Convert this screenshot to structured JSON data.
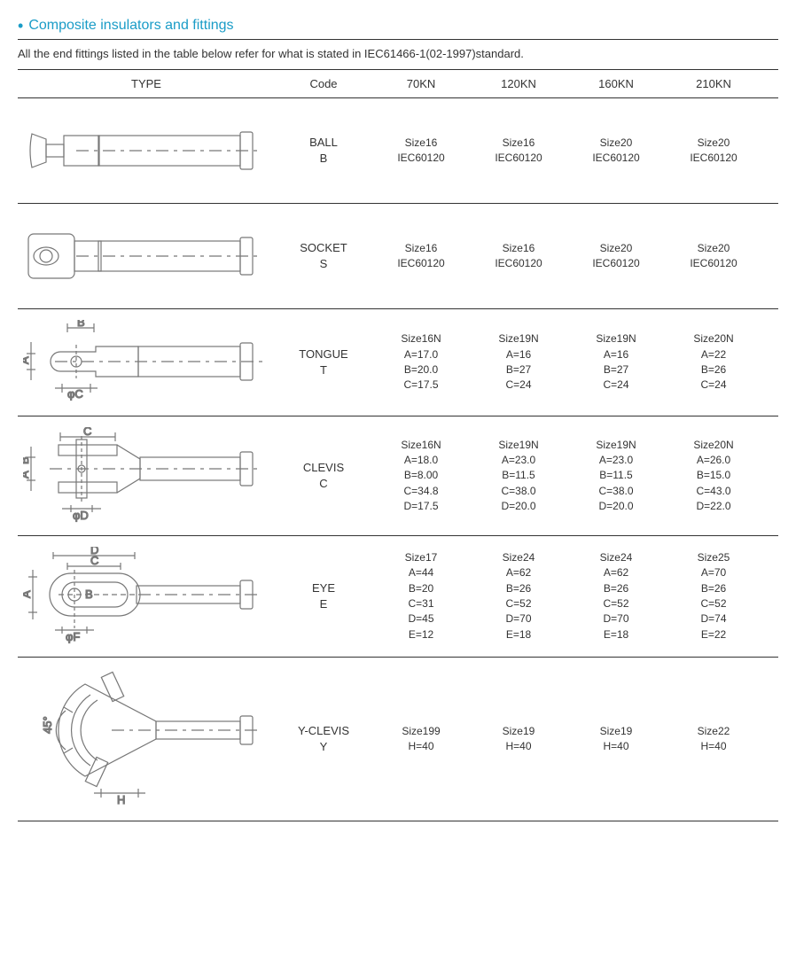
{
  "page_title": "Composite insulators and fittings",
  "subtitle": "All the end  fittings listed in the table below refer for what is stated in IEC61466-1(02-1997)standard.",
  "accent_color": "#1a9cc7",
  "rule_color": "#333333",
  "diagram_stroke": "#777777",
  "columns": {
    "type": "TYPE",
    "code": "Code",
    "kn": [
      "70KN",
      "120KN",
      "160KN",
      "210KN"
    ]
  },
  "rows": [
    {
      "diagram": "ball",
      "code_name": "BALL",
      "code_letter": "B",
      "cells": [
        [
          "Size16",
          "IEC60120"
        ],
        [
          "Size16",
          "IEC60120"
        ],
        [
          "Size20",
          "IEC60120"
        ],
        [
          "Size20",
          "IEC60120"
        ]
      ]
    },
    {
      "diagram": "socket",
      "code_name": "SOCKET",
      "code_letter": "S",
      "cells": [
        [
          "Size16",
          "IEC60120"
        ],
        [
          "Size16",
          "IEC60120"
        ],
        [
          "Size20",
          "IEC60120"
        ],
        [
          "Size20",
          "IEC60120"
        ]
      ]
    },
    {
      "diagram": "tongue",
      "code_name": "TONGUE",
      "code_letter": "T",
      "cells": [
        [
          "Size16N",
          "A=17.0",
          "B=20.0",
          "C=17.5"
        ],
        [
          "Size19N",
          "A=16",
          "B=27",
          "C=24"
        ],
        [
          "Size19N",
          "A=16",
          "B=27",
          "C=24"
        ],
        [
          "Size20N",
          "A=22",
          "B=26",
          "C=24"
        ]
      ]
    },
    {
      "diagram": "clevis",
      "code_name": "CLEVIS",
      "code_letter": "C",
      "cells": [
        [
          "Size16N",
          "A=18.0",
          "B=8.00",
          "C=34.8",
          "D=17.5"
        ],
        [
          "Size19N",
          "A=23.0",
          "B=11.5",
          "C=38.0",
          "D=20.0"
        ],
        [
          "Size19N",
          "A=23.0",
          "B=11.5",
          "C=38.0",
          "D=20.0"
        ],
        [
          "Size20N",
          "A=26.0",
          "B=15.0",
          "C=43.0",
          "D=22.0"
        ]
      ]
    },
    {
      "diagram": "eye",
      "code_name": "EYE",
      "code_letter": "E",
      "cells": [
        [
          "Size17",
          "A=44",
          "B=20",
          "C=31",
          "D=45",
          "E=12"
        ],
        [
          "Size24",
          "A=62",
          "B=26",
          "C=52",
          "D=70",
          "E=18"
        ],
        [
          "Size24",
          "A=62",
          "B=26",
          "C=52",
          "D=70",
          "E=18"
        ],
        [
          "Size25",
          "A=70",
          "B=26",
          "C=52",
          "D=74",
          "E=22"
        ]
      ]
    },
    {
      "diagram": "yclevis",
      "code_name": "Y-CLEVIS",
      "code_letter": "Y",
      "cells": [
        [
          "Size199",
          "H=40"
        ],
        [
          "Size19",
          "H=40"
        ],
        [
          "Size19",
          "H=40"
        ],
        [
          "Size22",
          "H=40"
        ]
      ]
    }
  ]
}
